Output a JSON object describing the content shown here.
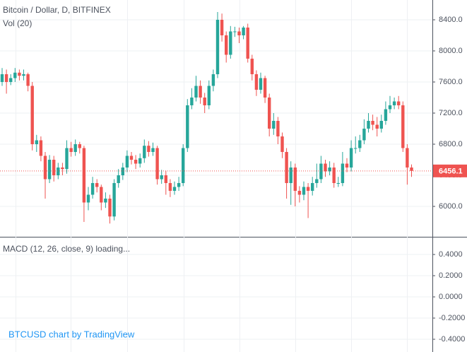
{
  "chart_data": [
    {
      "type": "candlestick",
      "title": "Bitcoin / Dollar, D, BITFINEX",
      "subtitle": "Vol (20)",
      "open": [
        7600,
        7700,
        7600,
        7650,
        7720,
        7680,
        7700,
        7550,
        6800,
        6850,
        6650,
        6350,
        6600,
        6400,
        6500,
        6480,
        6750,
        6700,
        6800,
        6750,
        6050,
        6150,
        6300,
        6250,
        6050,
        6100,
        5870,
        6300,
        6400,
        6500,
        6650,
        6600,
        6550,
        6620,
        6780,
        6700,
        6750,
        6350,
        6400,
        6300,
        6200,
        6250,
        6300,
        6750,
        7300,
        7400,
        7550,
        7400,
        7300,
        7550,
        7700,
        8400,
        8200,
        7950,
        8250,
        8250,
        8200,
        8300,
        7900,
        7700,
        7500,
        7650,
        7400,
        7000,
        7100,
        6900,
        6700,
        6300,
        6500,
        6200,
        6150,
        6250,
        6200,
        6300,
        6350,
        6550,
        6450,
        6500,
        6300,
        6300,
        6550,
        6500,
        6750,
        6750,
        6850,
        7000,
        7100,
        7050,
        7000,
        7100,
        7250,
        7300,
        7350,
        7300,
        6750,
        6500
      ],
      "high": [
        7780,
        7760,
        7700,
        7780,
        7760,
        7760,
        7720,
        7600,
        6920,
        6900,
        6700,
        6660,
        6650,
        6560,
        6560,
        6850,
        6830,
        6860,
        6830,
        6780,
        6250,
        6380,
        6350,
        6280,
        6180,
        6150,
        6350,
        6480,
        6560,
        6720,
        6700,
        6660,
        6680,
        6860,
        6840,
        6820,
        6780,
        6470,
        6460,
        6350,
        6320,
        6380,
        6800,
        7380,
        7520,
        7680,
        7620,
        7460,
        7620,
        7760,
        8500,
        8480,
        8250,
        8320,
        8310,
        8300,
        8320,
        8350,
        7950,
        7750,
        7720,
        7680,
        7450,
        7200,
        7150,
        6950,
        6750,
        6580,
        6550,
        6260,
        6320,
        6300,
        6380,
        6550,
        6650,
        6600,
        6580,
        6560,
        6380,
        6700,
        6620,
        6850,
        6900,
        6920,
        7120,
        7200,
        7180,
        7150,
        7180,
        7350,
        7420,
        7400,
        7420,
        7350,
        6800,
        6540
      ],
      "low": [
        7550,
        7450,
        7560,
        7600,
        7620,
        7620,
        7480,
        6720,
        6700,
        6580,
        6100,
        6300,
        6320,
        6350,
        6400,
        6420,
        6640,
        6650,
        6680,
        5800,
        5950,
        6100,
        6180,
        5950,
        5980,
        5780,
        5820,
        6240,
        6340,
        6440,
        6540,
        6480,
        6500,
        6560,
        6640,
        6650,
        6280,
        6290,
        6150,
        6120,
        6150,
        6200,
        6260,
        6700,
        7250,
        7350,
        7320,
        7200,
        7250,
        7480,
        7650,
        8120,
        7850,
        7900,
        8180,
        8100,
        8150,
        7850,
        7620,
        7420,
        7450,
        7330,
        6900,
        6920,
        6800,
        6620,
        6100,
        6020,
        6000,
        6050,
        6080,
        5850,
        6140,
        6240,
        6300,
        6380,
        6400,
        6240,
        6250,
        6260,
        6440,
        6450,
        6680,
        6700,
        6800,
        6950,
        6980,
        6900,
        6950,
        7050,
        7200,
        7250,
        7250,
        6700,
        6280,
        6380
      ],
      "close": [
        7700,
        7600,
        7650,
        7720,
        7680,
        7700,
        7550,
        6800,
        6850,
        6650,
        6350,
        6600,
        6400,
        6500,
        6480,
        6750,
        6700,
        6800,
        6750,
        6050,
        6150,
        6300,
        6250,
        6050,
        6100,
        5870,
        6300,
        6400,
        6500,
        6650,
        6600,
        6550,
        6620,
        6780,
        6700,
        6750,
        6350,
        6400,
        6300,
        6200,
        6250,
        6300,
        6750,
        7300,
        7400,
        7550,
        7400,
        7300,
        7550,
        7700,
        8400,
        8200,
        7950,
        8250,
        8250,
        8200,
        8300,
        7900,
        7700,
        7500,
        7650,
        7400,
        7000,
        7100,
        6900,
        6700,
        6300,
        6500,
        6200,
        6150,
        6250,
        6200,
        6300,
        6350,
        6550,
        6450,
        6500,
        6300,
        6300,
        6550,
        6500,
        6750,
        6750,
        6850,
        7000,
        7100,
        7050,
        7000,
        7100,
        7250,
        7300,
        7350,
        7300,
        6750,
        6500,
        6456.1
      ],
      "up_color": "#26a69a",
      "down_color": "#ef5350",
      "ylim": [
        5609,
        8654.5
      ],
      "yticks": [
        {
          "value": 6000,
          "label": "6000.0"
        },
        {
          "value": 6400,
          "label": "6400.0"
        },
        {
          "value": 6800,
          "label": "6800.0"
        },
        {
          "value": 7200,
          "label": "7200.0"
        },
        {
          "value": 7600,
          "label": "7600.0"
        },
        {
          "value": 8000,
          "label": "8000.0"
        },
        {
          "value": 8400,
          "label": "8400.0"
        }
      ],
      "grid": true,
      "last_price_line": true
    },
    {
      "type": "indicator",
      "title": "MACD (12, 26, close, 9) loading...",
      "ylim": [
        -0.52,
        0.567
      ],
      "yticks": [
        {
          "value": 0.4,
          "label": "0.4000"
        },
        {
          "value": 0.2,
          "label": "0.2000"
        },
        {
          "value": 0,
          "label": "0.0000"
        },
        {
          "value": -0.2,
          "label": "-0.2000"
        },
        {
          "value": -0.4,
          "label": "-0.4000"
        }
      ],
      "grid": true
    }
  ],
  "watermark": "BTCUSD chart by TradingView"
}
